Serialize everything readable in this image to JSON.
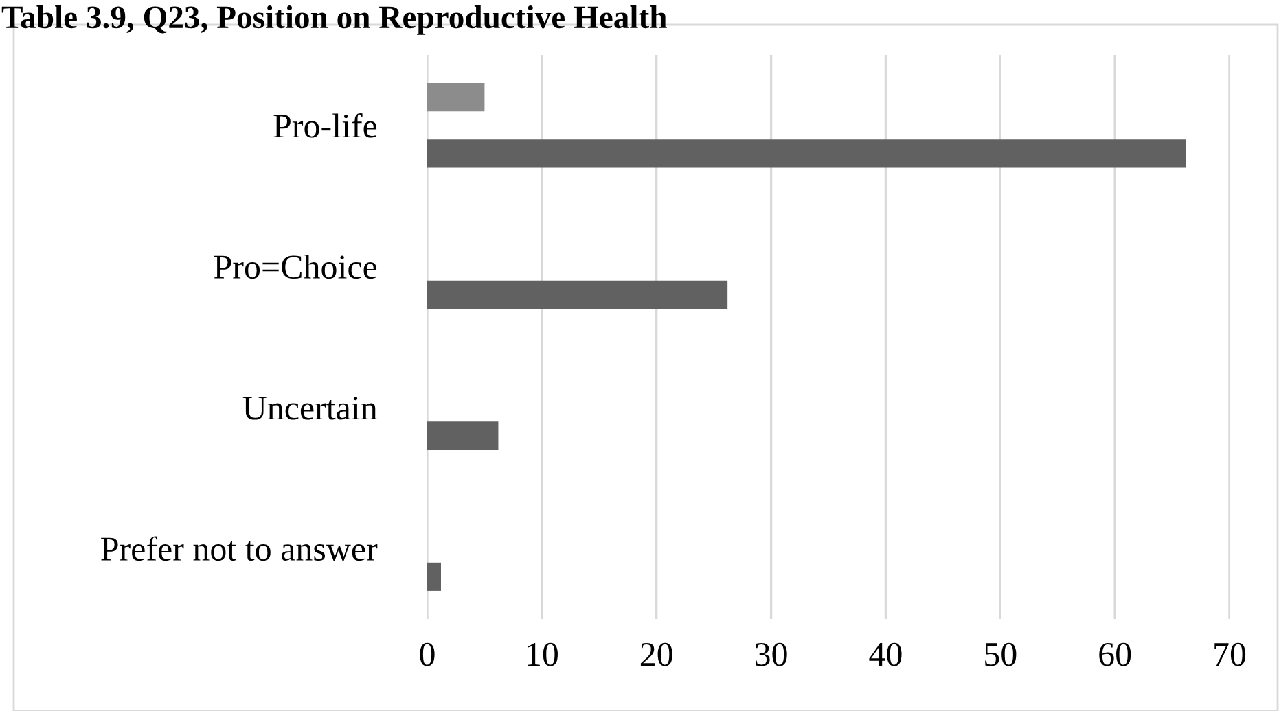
{
  "chart_data": {
    "type": "bar",
    "orientation": "horizontal",
    "title": "Table 3.9, Q23, Position on Reproductive Health",
    "categories": [
      "Pro-life",
      "Pro=Choice",
      "Uncertain",
      "Prefer not to answer"
    ],
    "series": [
      {
        "color": "#8c8c8c",
        "values": [
          5,
          null,
          null,
          null
        ]
      },
      {
        "color": "#616161",
        "values": [
          66.2,
          26.2,
          6.2,
          1.2
        ]
      }
    ],
    "xlim": [
      0,
      70
    ],
    "xticks": [
      0,
      10,
      20,
      30,
      40,
      50,
      60,
      70
    ],
    "grid": "x",
    "legend": false
  }
}
